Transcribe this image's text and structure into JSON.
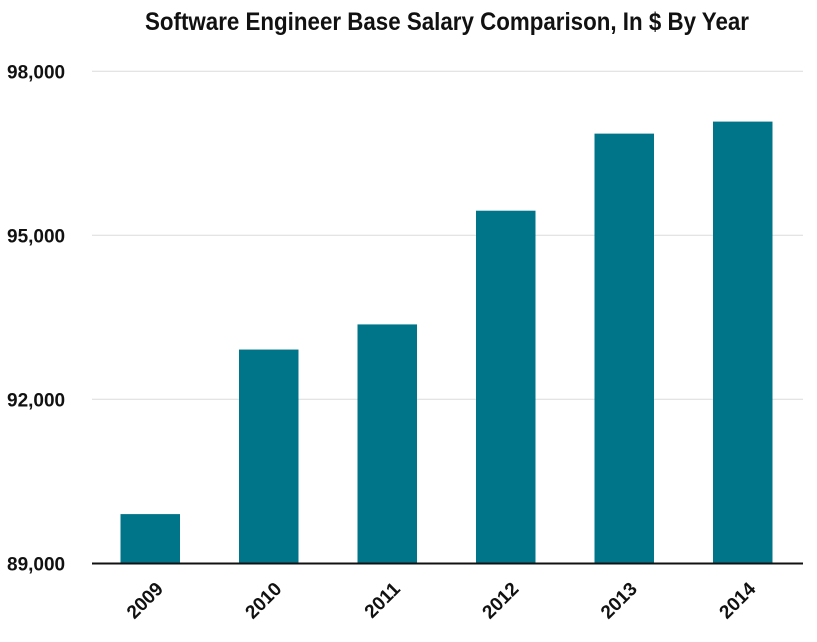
{
  "chart_data": {
    "type": "bar",
    "title": "Software Engineer Base Salary Comparison, In $ By Year",
    "xlabel": "",
    "ylabel": "",
    "categories": [
      "2009",
      "2010",
      "2011",
      "2012",
      "2013",
      "2014"
    ],
    "values": [
      89900,
      92910,
      93370,
      95450,
      96860,
      97080
    ],
    "ylim": [
      89000,
      98000
    ],
    "yticks": [
      89000,
      92000,
      95000,
      98000
    ],
    "ytick_labels": [
      "89,000",
      "92,000",
      "95,000",
      "98,000"
    ],
    "grid": true,
    "bar_color": "#00758a",
    "legend": "none"
  }
}
